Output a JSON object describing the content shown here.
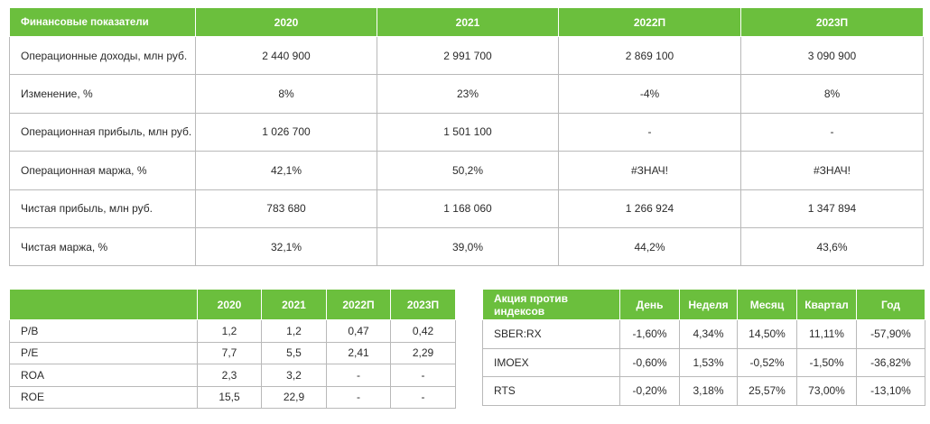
{
  "financials": {
    "headers": [
      "Финансовые показатели",
      "2020",
      "2021",
      "2022П",
      "2023П"
    ],
    "rows": [
      [
        "Операционные доходы, млн руб.",
        "2 440 900",
        "2 991 700",
        "2 869 100",
        "3 090 900"
      ],
      [
        "Изменение, %",
        "8%",
        "23%",
        "-4%",
        "8%"
      ],
      [
        "Операционная прибыль, млн руб.",
        "1 026 700",
        "1 501 100",
        "-",
        "-"
      ],
      [
        "Операционная маржа, %",
        "42,1%",
        "50,2%",
        "#ЗНАЧ!",
        "#ЗНАЧ!"
      ],
      [
        "Чистая прибыль, млн руб.",
        "783 680",
        "1 168 060",
        "1 266 924",
        "1 347 894"
      ],
      [
        "Чистая маржа, %",
        "32,1%",
        "39,0%",
        "44,2%",
        "43,6%"
      ]
    ]
  },
  "multiples": {
    "headers": [
      "",
      "2020",
      "2021",
      "2022П",
      "2023П"
    ],
    "rows": [
      [
        "P/B",
        "1,2",
        "1,2",
        "0,47",
        "0,42"
      ],
      [
        "P/E",
        "7,7",
        "5,5",
        "2,41",
        "2,29"
      ],
      [
        "ROA",
        "2,3",
        "3,2",
        "-",
        "-"
      ],
      [
        "ROE",
        "15,5",
        "22,9",
        "-",
        "-"
      ]
    ]
  },
  "indices": {
    "headers": [
      "Акция против индексов",
      "День",
      "Неделя",
      "Месяц",
      "Квартал",
      "Год"
    ],
    "rows": [
      [
        "SBER:RX",
        "-1,60%",
        "4,34%",
        "14,50%",
        "11,11%",
        "-57,90%"
      ],
      [
        "IMOEX",
        "-0,60%",
        "1,53%",
        "-0,52%",
        "-1,50%",
        "-36,82%"
      ],
      [
        "RTS",
        "-0,20%",
        "3,18%",
        "25,57%",
        "73,00%",
        "-13,10%"
      ]
    ]
  },
  "colors": {
    "header_bg": "#6bbf3d",
    "header_text": "#ffffff",
    "border": "#b9b9b9"
  }
}
